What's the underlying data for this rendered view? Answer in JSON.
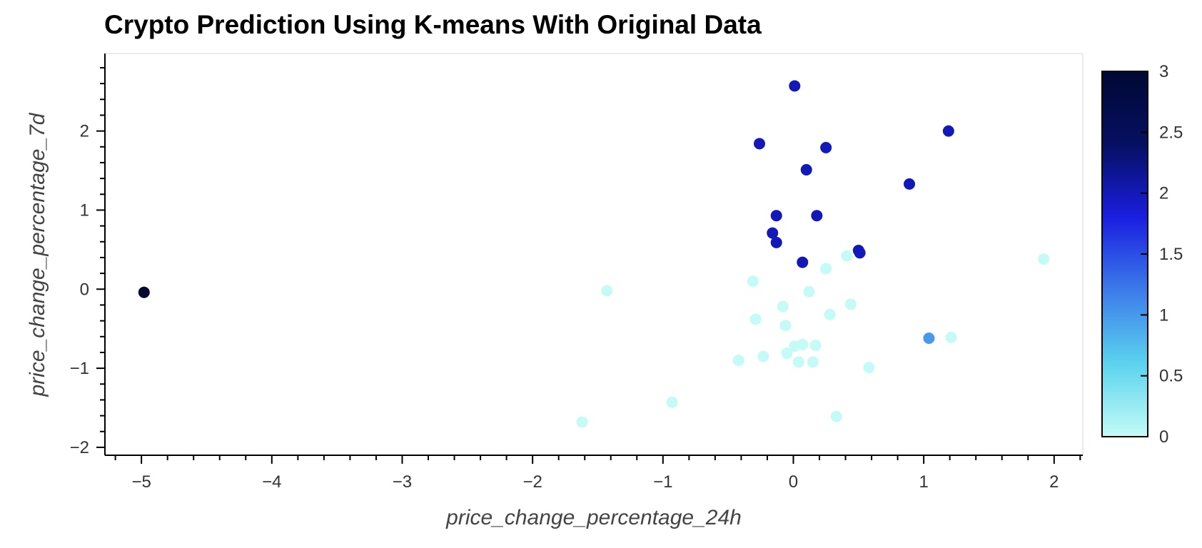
{
  "title": "Crypto Prediction Using K-means With Original Data",
  "chart_data": {
    "type": "scatter",
    "title": "Crypto Prediction Using K-means With Original Data",
    "xlabel": "price_change_percentage_24h",
    "ylabel": "price_change_percentage_7d",
    "xlim": [
      -5.28,
      2.22
    ],
    "ylim": [
      -2.1,
      2.98
    ],
    "x_ticks": [
      -5,
      -4,
      -3,
      -2,
      -1,
      0,
      1,
      2
    ],
    "x_tick_labels": [
      "−5",
      "−4",
      "−3",
      "−2",
      "−1",
      "0",
      "1",
      "2"
    ],
    "y_ticks": [
      -2,
      -1,
      0,
      1,
      2
    ],
    "y_tick_labels": [
      "−2",
      "−1",
      "0",
      "1",
      "2"
    ],
    "color_by": "cluster",
    "colorbar": {
      "range": [
        0,
        3
      ],
      "ticks": [
        0,
        0.5,
        1,
        1.5,
        2,
        2.5,
        3
      ],
      "tick_labels": [
        "0",
        "0.5",
        "1",
        "1.5",
        "2",
        "2.5",
        "3"
      ],
      "colors": [
        "#c5fbf7",
        "#5bd3ee",
        "#3c7cea",
        "#1a1ee0",
        "#061062",
        "#000833"
      ]
    },
    "points": [
      {
        "x": -4.98,
        "y": -0.04,
        "cluster": 3
      },
      {
        "x": 0.01,
        "y": 2.57,
        "cluster": 2
      },
      {
        "x": -0.26,
        "y": 1.84,
        "cluster": 2
      },
      {
        "x": 0.25,
        "y": 1.79,
        "cluster": 2
      },
      {
        "x": 1.19,
        "y": 2.0,
        "cluster": 2
      },
      {
        "x": 0.1,
        "y": 1.51,
        "cluster": 2
      },
      {
        "x": 0.89,
        "y": 1.33,
        "cluster": 2
      },
      {
        "x": -0.13,
        "y": 0.93,
        "cluster": 2
      },
      {
        "x": 0.18,
        "y": 0.93,
        "cluster": 2
      },
      {
        "x": -0.16,
        "y": 0.71,
        "cluster": 2
      },
      {
        "x": -0.13,
        "y": 0.59,
        "cluster": 2
      },
      {
        "x": 0.5,
        "y": 0.49,
        "cluster": 2
      },
      {
        "x": 0.51,
        "y": 0.46,
        "cluster": 2
      },
      {
        "x": 0.07,
        "y": 0.34,
        "cluster": 2
      },
      {
        "x": 1.04,
        "y": -0.62,
        "cluster": 1
      },
      {
        "x": -1.43,
        "y": -0.02,
        "cluster": 0
      },
      {
        "x": -0.31,
        "y": 0.1,
        "cluster": 0
      },
      {
        "x": 0.41,
        "y": 0.42,
        "cluster": 0
      },
      {
        "x": 0.25,
        "y": 0.26,
        "cluster": 0
      },
      {
        "x": 1.92,
        "y": 0.38,
        "cluster": 0
      },
      {
        "x": 0.12,
        "y": -0.03,
        "cluster": 0
      },
      {
        "x": -0.08,
        "y": -0.22,
        "cluster": 0
      },
      {
        "x": 0.44,
        "y": -0.19,
        "cluster": 0
      },
      {
        "x": -0.29,
        "y": -0.38,
        "cluster": 0
      },
      {
        "x": 0.28,
        "y": -0.32,
        "cluster": 0
      },
      {
        "x": -0.06,
        "y": -0.46,
        "cluster": 0
      },
      {
        "x": 1.21,
        "y": -0.61,
        "cluster": 0
      },
      {
        "x": 0.01,
        "y": -0.72,
        "cluster": 0
      },
      {
        "x": 0.07,
        "y": -0.7,
        "cluster": 0
      },
      {
        "x": 0.17,
        "y": -0.71,
        "cluster": 0
      },
      {
        "x": -0.05,
        "y": -0.81,
        "cluster": 0
      },
      {
        "x": -0.23,
        "y": -0.85,
        "cluster": 0
      },
      {
        "x": -0.42,
        "y": -0.9,
        "cluster": 0
      },
      {
        "x": 0.04,
        "y": -0.92,
        "cluster": 0
      },
      {
        "x": 0.15,
        "y": -0.92,
        "cluster": 0
      },
      {
        "x": 0.58,
        "y": -0.99,
        "cluster": 0
      },
      {
        "x": -0.93,
        "y": -1.43,
        "cluster": 0
      },
      {
        "x": 0.33,
        "y": -1.61,
        "cluster": 0
      },
      {
        "x": -1.62,
        "y": -1.68,
        "cluster": 0
      }
    ]
  }
}
